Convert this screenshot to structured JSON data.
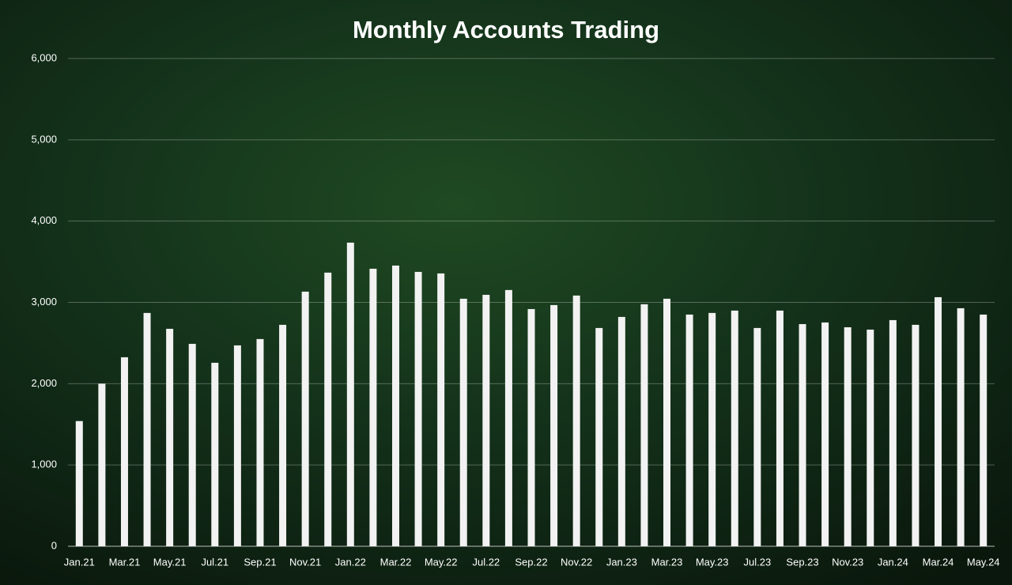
{
  "chart_data": {
    "type": "bar",
    "title": "Monthly Accounts Trading",
    "categories": [
      "Jan.21",
      null,
      "Mar.21",
      null,
      "May.21",
      null,
      "Jul.21",
      null,
      "Sep.21",
      null,
      "Nov.21",
      null,
      "Jan.22",
      null,
      "Mar.22",
      null,
      "May.22",
      null,
      "Jul.22",
      null,
      "Sep.22",
      null,
      "Nov.22",
      null,
      "Jan.23",
      null,
      "Mar.23",
      null,
      "May.23",
      null,
      "Jul.23",
      null,
      "Sep.23",
      null,
      "Nov.23",
      null,
      "Jan.24",
      null,
      "Mar.24",
      null,
      "May.24"
    ],
    "values": [
      1540,
      2000,
      2325,
      2870,
      2675,
      2490,
      2257,
      2471,
      2549,
      2724,
      3132,
      3366,
      3735,
      3414,
      3453,
      3375,
      3356,
      3045,
      3093,
      3152,
      2918,
      2967,
      3084,
      2685,
      2821,
      2977,
      3045,
      2850,
      2870,
      2899,
      2685,
      2899,
      2733,
      2753,
      2694,
      2665,
      2782,
      2724,
      3064,
      2928,
      2850
    ],
    "color": "#f2f2f2",
    "ylim": [
      0,
      6000
    ],
    "yticks": [
      0,
      {
        "value": 1000,
        "label": "1,000"
      },
      {
        "value": 2000,
        "label": "2,000"
      },
      {
        "value": 3000,
        "label": "3,000"
      },
      {
        "value": 4000,
        "label": "4,000"
      },
      {
        "value": 5000,
        "label": "5,000"
      },
      {
        "value": 6000,
        "label": "6,000"
      }
    ],
    "grid": true
  }
}
